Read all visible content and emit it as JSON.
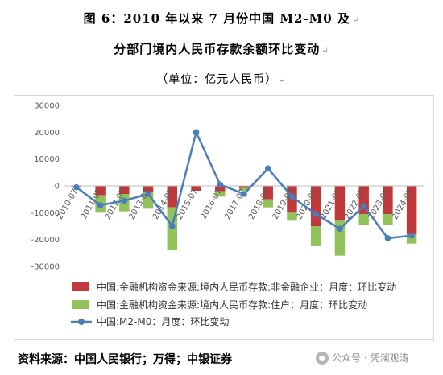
{
  "header": {
    "title_line1": "图 6：2010 年以来 7 月份中国 M2-M0 及",
    "title_line2": "分部门境内人民币存款余额环比变动",
    "unit": "（单位：亿元人民币）"
  },
  "footer": {
    "source": "资料来源：中国人民银行；万得；中银证券",
    "watermark": "公众号 · 凭澜观涛"
  },
  "chart_data": {
    "type": "bar",
    "categories": [
      "2010-07",
      "2011-07",
      "2012-07",
      "2013-07",
      "2014-07",
      "2015-07",
      "2016-07",
      "2017-07",
      "2018-07",
      "2019-07",
      "2020-07",
      "2021-07",
      "2022-07",
      "2023-07",
      "2024-07"
    ],
    "ylim": [
      -30000,
      30000
    ],
    "yticks": [
      -30000,
      -20000,
      -10000,
      0,
      10000,
      20000,
      30000
    ],
    "series": [
      {
        "name": "中国:金融机构资金来源:境内人民币存款:非金融企业：月度：环比变动",
        "kind": "bar",
        "stacked": true,
        "color": "#c0393b",
        "values": [
          -500,
          -3500,
          -3000,
          -2500,
          -8000,
          -1800,
          -2000,
          -800,
          -5000,
          -10000,
          -15000,
          -13000,
          -10500,
          -10500,
          -18000
        ]
      },
      {
        "name": "中国:金融机构资金来源:境内人民币存款:住户：月度：环比变动",
        "kind": "bar",
        "stacked": true,
        "color": "#92c35a",
        "values": [
          0,
          -6500,
          -6500,
          -6000,
          -16000,
          0,
          -2000,
          -1000,
          -3000,
          -3000,
          -7500,
          -13000,
          -4000,
          -4000,
          -3500
        ]
      },
      {
        "name": "中国:M2-M0：月度：环比变动",
        "kind": "line",
        "color": "#4a7ebb",
        "values": [
          -500,
          -7200,
          -5500,
          -3000,
          -15000,
          20000,
          500,
          -3000,
          6500,
          -4000,
          -10500,
          -16000,
          -7500,
          -19500,
          -18500
        ]
      }
    ]
  }
}
